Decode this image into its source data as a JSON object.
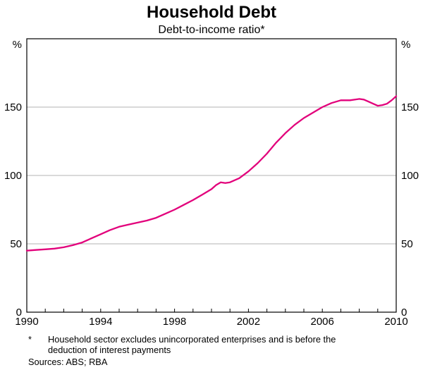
{
  "title": "Household Debt",
  "subtitle": "Debt-to-income ratio*",
  "footnote": {
    "marker": "*",
    "line1": "Household sector excludes unincorporated enterprises and is before the",
    "line2": "deduction of interest payments",
    "sources": "Sources: ABS; RBA"
  },
  "chart_data": {
    "type": "line",
    "title": "Household Debt",
    "subtitle": "Debt-to-income ratio*",
    "series_name": "Household debt-to-income ratio",
    "unit_label": "%",
    "line_color": "#e2017b",
    "grid": true,
    "legend": "none",
    "xlim": [
      1990,
      2010
    ],
    "ylim": [
      0,
      200
    ],
    "y_ticks": [
      0,
      50,
      100,
      150
    ],
    "gridlines": [
      50,
      100,
      150
    ],
    "x_tick_labels": [
      1990,
      1994,
      1998,
      2002,
      2006,
      2010
    ],
    "x": [
      1990,
      1990.5,
      1991,
      1991.5,
      1992,
      1992.5,
      1993,
      1993.5,
      1994,
      1994.5,
      1995,
      1995.5,
      1996,
      1996.5,
      1997,
      1997.5,
      1998,
      1998.5,
      1999,
      1999.5,
      2000,
      2000.25,
      2000.5,
      2000.75,
      2001,
      2001.5,
      2002,
      2002.5,
      2003,
      2003.5,
      2004,
      2004.5,
      2005,
      2005.5,
      2006,
      2006.5,
      2007,
      2007.5,
      2008,
      2008.25,
      2008.5,
      2008.75,
      2009,
      2009.25,
      2009.5,
      2009.75,
      2010
    ],
    "values": [
      45,
      45.5,
      46,
      46.5,
      47.5,
      49,
      51,
      54,
      57,
      60,
      62.5,
      64,
      65.5,
      67,
      69,
      72,
      75,
      78.5,
      82,
      86,
      90,
      93,
      95,
      94.5,
      95,
      98,
      103,
      109,
      116,
      124,
      131,
      137,
      142,
      146,
      150,
      153,
      155,
      155,
      156,
      155.5,
      154,
      152.5,
      151,
      151.5,
      152.5,
      155,
      158
    ]
  }
}
